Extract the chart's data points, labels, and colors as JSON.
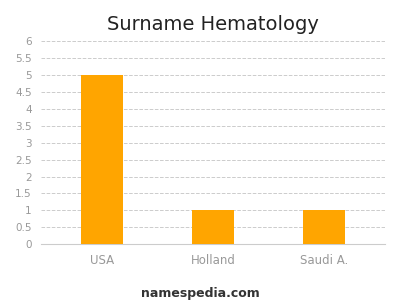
{
  "title": "Surname Hematology",
  "categories": [
    "USA",
    "Holland",
    "Saudi A."
  ],
  "values": [
    5,
    1,
    1
  ],
  "bar_color": "#FFA500",
  "ylim": [
    0,
    6
  ],
  "yticks": [
    0,
    0.5,
    1,
    1.5,
    2,
    2.5,
    3,
    3.5,
    4,
    4.5,
    5,
    5.5,
    6
  ],
  "grid_color": "#cccccc",
  "background_color": "#ffffff",
  "footer_text": "namespedia.com",
  "title_fontsize": 14,
  "tick_fontsize": 7.5,
  "xtick_fontsize": 8.5,
  "footer_fontsize": 9
}
